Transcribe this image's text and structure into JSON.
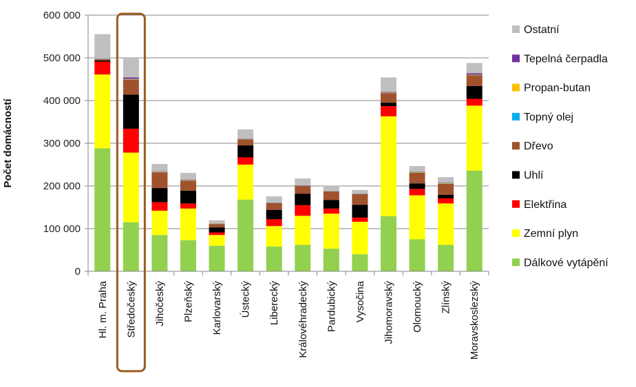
{
  "chart_data": {
    "type": "bar",
    "stacked": true,
    "title": "",
    "xlabel": "",
    "ylabel": "Počet domácností",
    "ylim": [
      0,
      600000
    ],
    "yticks": [
      0,
      100000,
      200000,
      300000,
      400000,
      500000,
      600000
    ],
    "ytick_labels": [
      "0",
      "100 000",
      "200 000",
      "300 000",
      "400 000",
      "500 000",
      "600 000"
    ],
    "grid": true,
    "legend_position": "right",
    "highlighted_category": "Středočeský",
    "categories": [
      "Hl. m. Praha",
      "Středočeský",
      "Jihočeský",
      "Plzeňský",
      "Karlovarský",
      "Ústecký",
      "Liberecký",
      "Královéhradecký",
      "Pardubický",
      "Vysočina",
      "Jihomoravský",
      "Olomoucký",
      "Zlínský",
      "Moravskoslezský"
    ],
    "series": [
      {
        "name": "Dálkové vytápění",
        "color": "#92d050",
        "values": [
          288000,
          115000,
          85000,
          73000,
          60000,
          168000,
          58000,
          62000,
          53000,
          40000,
          129000,
          75000,
          62000,
          236000
        ]
      },
      {
        "name": "Zemní plyn",
        "color": "#ffff00",
        "values": [
          173000,
          163000,
          57000,
          74000,
          25000,
          82000,
          48000,
          68000,
          82000,
          76000,
          234000,
          103000,
          97000,
          152000
        ]
      },
      {
        "name": "Elektřina",
        "color": "#ff0000",
        "values": [
          30000,
          56000,
          20000,
          12000,
          6000,
          17000,
          16000,
          25000,
          12000,
          10000,
          24000,
          15000,
          12000,
          16000
        ]
      },
      {
        "name": "Uhlí",
        "color": "#000000",
        "values": [
          3000,
          80000,
          33000,
          30000,
          12000,
          28000,
          22000,
          27000,
          20000,
          30000,
          8000,
          13000,
          8000,
          30000
        ]
      },
      {
        "name": "Dřevo",
        "color": "#a0522d",
        "values": [
          3000,
          35000,
          37000,
          23000,
          8000,
          14000,
          16000,
          18000,
          20000,
          25000,
          22000,
          25000,
          26000,
          25000
        ]
      },
      {
        "name": "Topný olej",
        "color": "#00b0f0",
        "values": [
          500,
          500,
          500,
          500,
          500,
          500,
          500,
          500,
          500,
          500,
          500,
          500,
          500,
          500
        ]
      },
      {
        "name": "Propan-butan",
        "color": "#ffc000",
        "values": [
          500,
          1000,
          1000,
          1000,
          500,
          500,
          500,
          500,
          500,
          500,
          1000,
          1000,
          1000,
          1000
        ]
      },
      {
        "name": "Tepelná čerpadla",
        "color": "#7030a0",
        "values": [
          500,
          3500,
          1000,
          1000,
          500,
          500,
          500,
          500,
          500,
          500,
          1500,
          1000,
          1000,
          3500
        ]
      },
      {
        "name": "Ostatní",
        "color": "#bfbfbf",
        "values": [
          57000,
          46000,
          17000,
          16000,
          7000,
          22000,
          14000,
          16000,
          12000,
          8000,
          34000,
          13000,
          13000,
          24000
        ]
      }
    ]
  }
}
